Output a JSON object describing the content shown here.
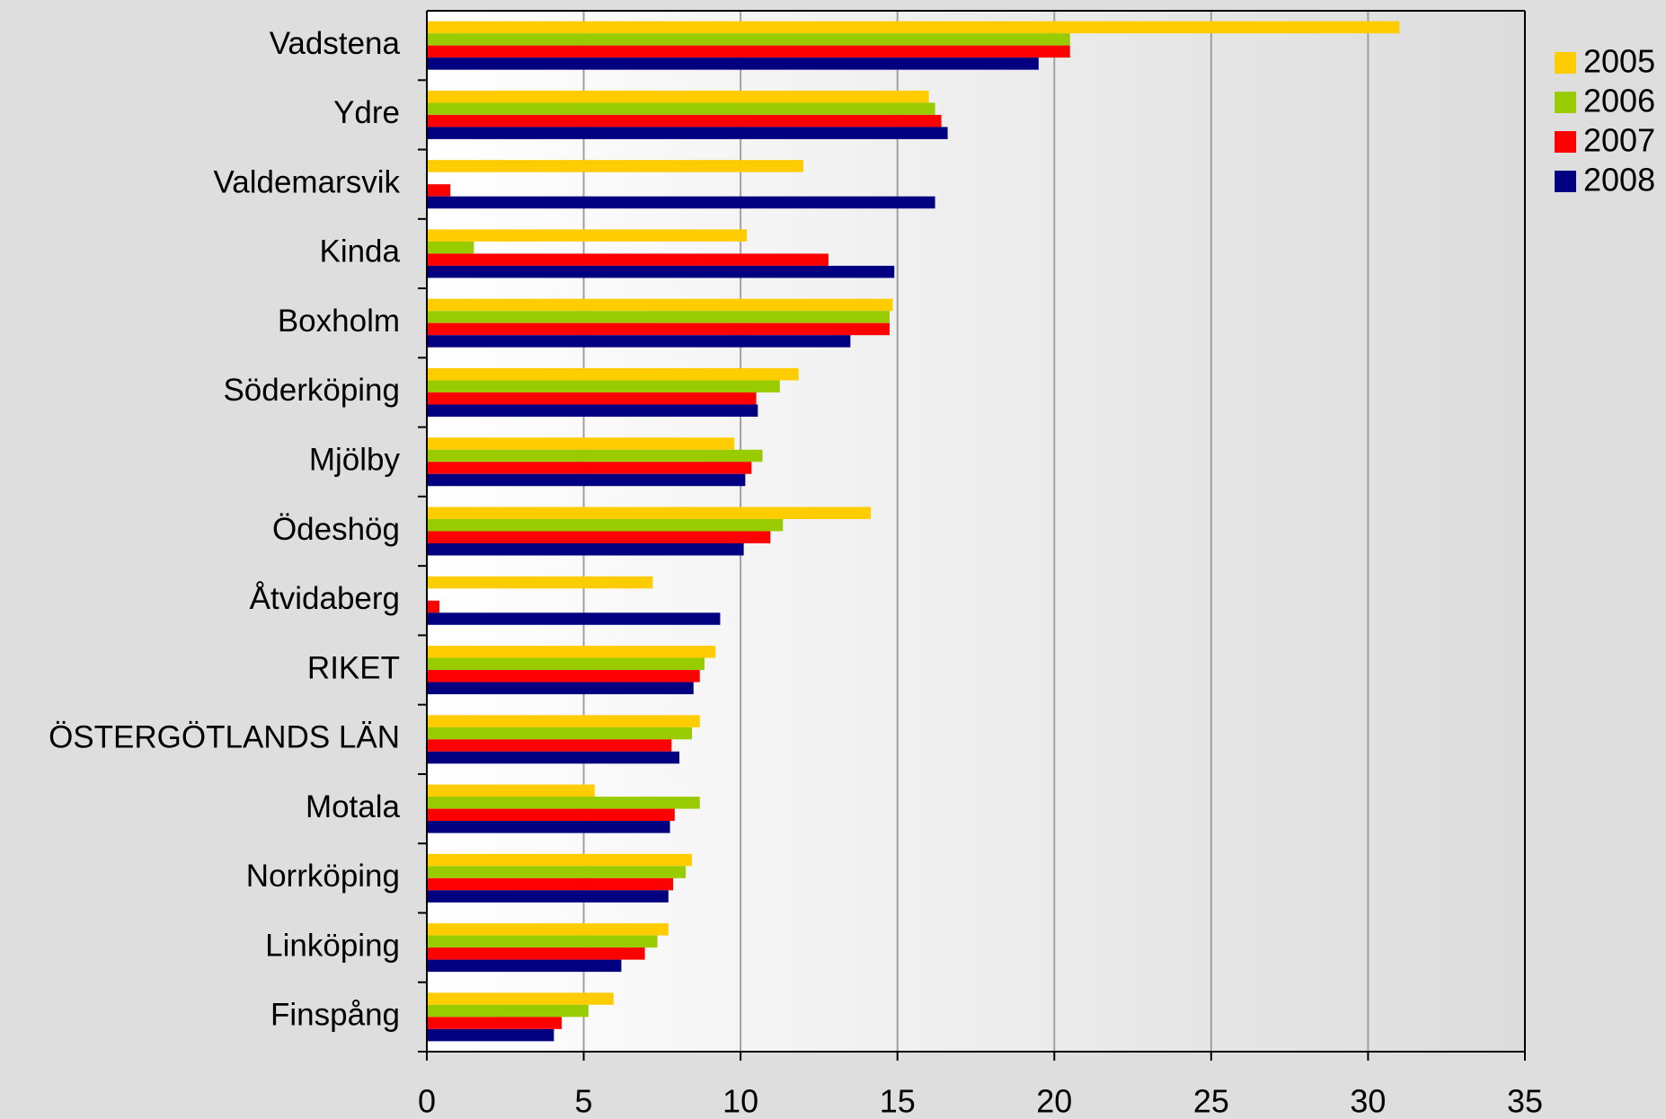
{
  "chart_data": {
    "type": "bar",
    "orientation": "horizontal",
    "categories": [
      "Vadstena",
      "Ydre",
      "Valdemarsvik",
      "Kinda",
      "Boxholm",
      "Söderköping",
      "Mjölby",
      "Ödeshög",
      "Åtvidaberg",
      "RIKET",
      "ÖSTERGÖTLANDS LÄN",
      "Motala",
      "Norrköping",
      "Linköping",
      "Finspång"
    ],
    "series": [
      {
        "name": "2005",
        "color": "#ffcc00",
        "values": [
          31.0,
          16.0,
          12.0,
          10.2,
          14.85,
          11.85,
          9.8,
          14.15,
          7.2,
          9.2,
          8.7,
          5.35,
          8.45,
          7.7,
          5.95
        ]
      },
      {
        "name": "2006",
        "color": "#99cc00",
        "values": [
          20.5,
          16.2,
          null,
          1.5,
          14.75,
          11.25,
          10.7,
          11.35,
          null,
          8.85,
          8.45,
          8.7,
          8.25,
          7.35,
          5.15
        ]
      },
      {
        "name": "2007",
        "color": "#ff0000",
        "values": [
          20.5,
          16.4,
          0.75,
          12.8,
          14.75,
          10.5,
          10.35,
          10.95,
          0.4,
          8.7,
          7.8,
          7.9,
          7.85,
          6.95,
          4.3
        ]
      },
      {
        "name": "2008",
        "color": "#000080",
        "values": [
          19.5,
          16.6,
          16.2,
          14.9,
          13.5,
          10.55,
          10.15,
          10.1,
          9.35,
          8.5,
          8.05,
          7.75,
          7.7,
          6.2,
          4.05
        ]
      }
    ],
    "xlim": [
      0,
      35
    ],
    "xticks": [
      0,
      5,
      10,
      15,
      20,
      25,
      30,
      35
    ],
    "grid": true,
    "legend": "top-right"
  }
}
